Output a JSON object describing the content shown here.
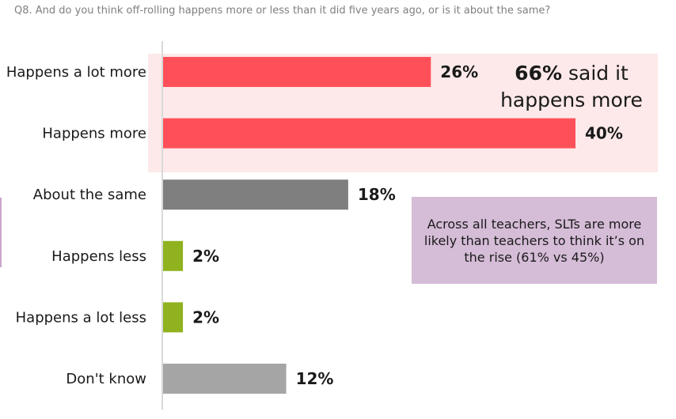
{
  "question": "Q8. And do you think off-rolling happens more or less than it did five years ago, or is it about the same?",
  "chart_data": {
    "type": "bar",
    "orientation": "horizontal",
    "categories": [
      "Happens a lot more",
      "Happens more",
      "About the same",
      "Happens less",
      "Happens a lot less",
      "Don't know"
    ],
    "values": [
      26,
      40,
      18,
      2,
      2,
      12
    ],
    "data_labels": [
      "26%",
      "40%",
      "18%",
      "2%",
      "2%",
      "12%"
    ],
    "bar_colors": [
      "#ff5059",
      "#ff5059",
      "#7f7f7f",
      "#8fb21e",
      "#8fb21e",
      "#a5a5a5"
    ],
    "xlim": [
      0,
      40
    ],
    "unit": "%",
    "grid": false,
    "legend": "none"
  },
  "callouts": {
    "more_pct": "66%",
    "more_text_a": "said it",
    "more_text_b": "happens more",
    "slt_note": "Across all teachers, SLTs are more likely than teachers to think it’s on the rise (61% vs 45%)"
  },
  "colors": {
    "highlight_band": "#fde9e9",
    "callout_box": "#d5bcd7",
    "axis_line": "#d9d9d9"
  }
}
